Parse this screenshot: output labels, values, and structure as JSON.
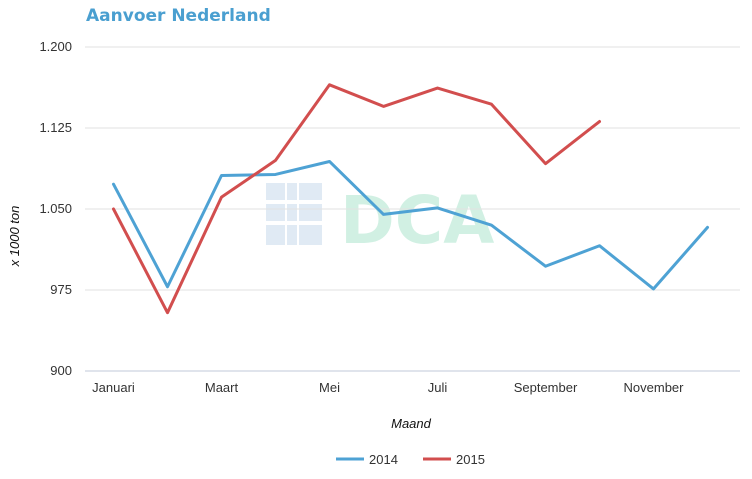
{
  "chart_data": {
    "type": "line",
    "title": "Aanvoer Nederland",
    "xlabel": "Maand",
    "ylabel": "x 1000 ton",
    "y_ticks": [
      "1.200",
      "1.125",
      "1.050",
      "975",
      "900"
    ],
    "y_tick_values": [
      1200,
      1125,
      1050,
      975,
      900
    ],
    "ylim": [
      900,
      1200
    ],
    "x_tick_labels": [
      "Januari",
      "Maart",
      "Mei",
      "Juli",
      "September",
      "November"
    ],
    "x_tick_months": [
      1,
      3,
      5,
      7,
      9,
      11
    ],
    "months": [
      1,
      2,
      3,
      4,
      5,
      6,
      7,
      8,
      9,
      10,
      11,
      12
    ],
    "series": [
      {
        "name": "2014",
        "color": "#4ea2d4",
        "values": [
          1073,
          978,
          1081,
          1082,
          1094,
          1045,
          1051,
          1035,
          997,
          1016,
          976,
          1033
        ]
      },
      {
        "name": "2015",
        "color": "#d24e4e",
        "values": [
          1050,
          954,
          1061,
          1095,
          1165,
          1145,
          1162,
          1147,
          1092,
          1131
        ]
      }
    ],
    "grid": true,
    "legend": "bottom-center",
    "watermark": "DCA"
  }
}
